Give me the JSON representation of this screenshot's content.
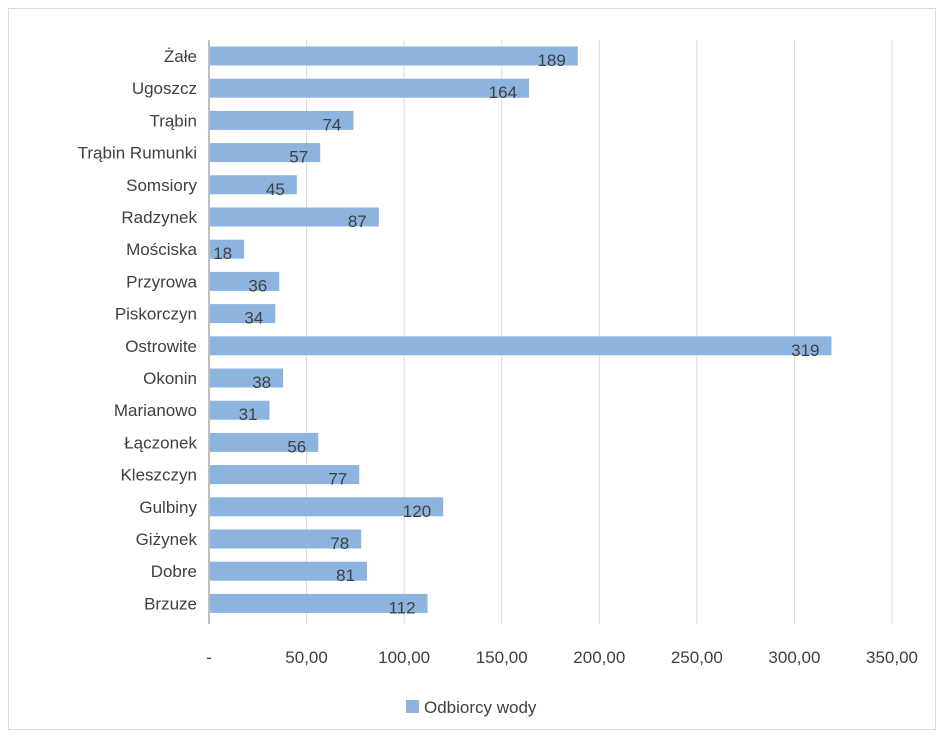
{
  "chart_data": {
    "type": "bar",
    "orientation": "horizontal",
    "categories": [
      "Żałe",
      "Ugoszcz",
      "Trąbin",
      "Trąbin Rumunki",
      "Somsiory",
      "Radzynek",
      "Mościska",
      "Przyrowa",
      "Piskorczyn",
      "Ostrowite",
      "Okonin",
      "Marianowo",
      "Łączonek",
      "Kleszczyn",
      "Gulbiny",
      "Giżynek",
      "Dobre",
      "Brzuze"
    ],
    "series": [
      {
        "name": "Odbiorcy wody",
        "values": [
          189,
          164,
          74,
          57,
          45,
          87,
          18,
          36,
          34,
          319,
          38,
          31,
          56,
          77,
          120,
          78,
          81,
          112
        ]
      }
    ],
    "data_labels": [
      "189",
      "164",
      "74",
      "57",
      "45",
      "87",
      "18",
      "36",
      "34",
      "319",
      "38",
      "31",
      "56",
      "77",
      "120",
      "78",
      "81",
      "112"
    ],
    "x_ticks": [
      0,
      50,
      100,
      150,
      200,
      250,
      300,
      350
    ],
    "x_tick_labels": [
      "-",
      "50,00",
      "100,00",
      "150,00",
      "200,00",
      "250,00",
      "300,00",
      "350,00"
    ],
    "xlim": [
      0,
      350
    ],
    "title": "",
    "xlabel": "",
    "ylabel": "",
    "grid": "vertical",
    "legend_position": "bottom",
    "colors": {
      "bar": "#8cb4df",
      "grid": "#d9d9d9",
      "axis": "#bfbfbf",
      "text": "#404040"
    }
  }
}
